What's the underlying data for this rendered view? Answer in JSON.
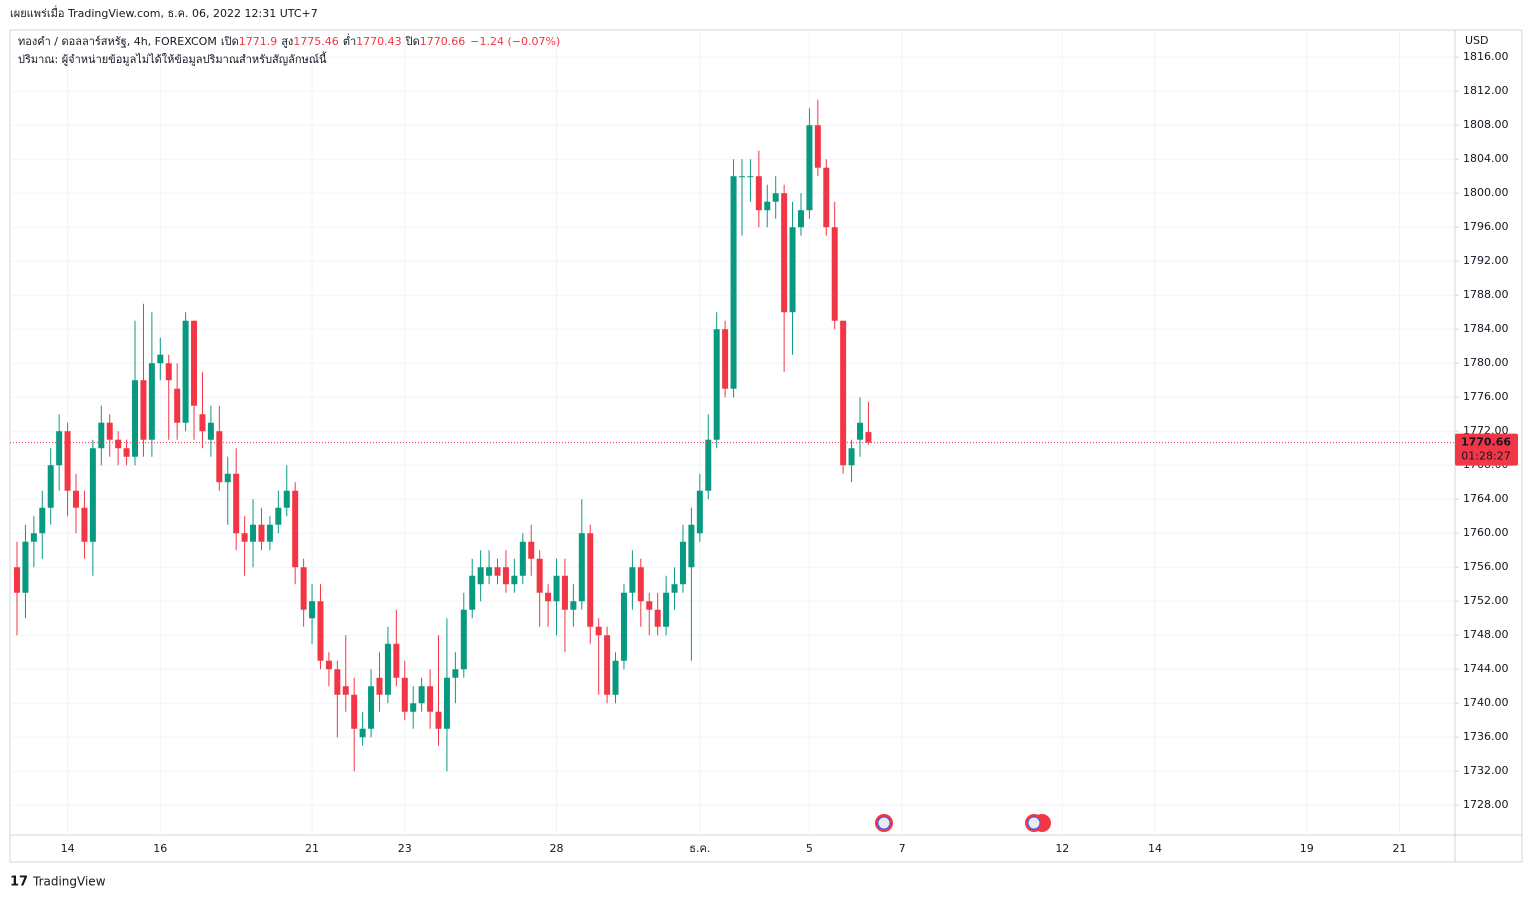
{
  "published": "เผยแพร่เมื่อ TradingView.com, ธ.ค. 06, 2022 12:31 UTC+7",
  "brand": "TradingView",
  "chart_data": {
    "type": "candlestick",
    "symbol": "ทองคำ / ดอลลาร์สหรัฐ, 4h, FOREXCOM",
    "open_label": "เปิด",
    "high_label": "สูง",
    "low_label": "ต่ำ",
    "close_label": "ปิด",
    "change_label": "−1.24 (−0.07%)",
    "volume_note": "ปริมาณ: ผู้จำหน่ายข้อมูลไม่ได้ให้ข้อมูลปริมาณสำหรับสัญลักษณ์นี้",
    "currency": "USD",
    "countdown": "01:28:27",
    "up_color": "#089981",
    "down_color": "#f23645",
    "grid": true,
    "categories": [
      null,
      null,
      null,
      null,
      null,
      null,
      "14",
      null,
      null,
      null,
      null,
      null,
      null,
      null,
      null,
      null,
      null,
      "16",
      null,
      null,
      null,
      null,
      null,
      null,
      null,
      null,
      null,
      null,
      null,
      null,
      null,
      null,
      null,
      null,
      null,
      "21",
      null,
      null,
      null,
      null,
      null,
      null,
      null,
      null,
      null,
      null,
      "23",
      null,
      null,
      null,
      null,
      null,
      null,
      null,
      null,
      null,
      null,
      null,
      null,
      null,
      null,
      null,
      null,
      null,
      "28",
      null,
      null,
      null,
      null,
      null,
      null,
      null,
      null,
      null,
      null,
      null,
      null,
      null,
      null,
      null,
      null,
      "ธ.ค.",
      null,
      null,
      null,
      null,
      null,
      null,
      null,
      null,
      null,
      null,
      null,
      null,
      "5",
      null,
      null,
      null,
      null,
      null,
      null,
      null,
      null,
      null,
      null,
      "7",
      null,
      null,
      null,
      null,
      null,
      null,
      null,
      null,
      null,
      null,
      null,
      null,
      null,
      null,
      null,
      null,
      null,
      null,
      "12",
      null,
      null,
      null,
      null,
      null,
      null,
      null,
      null,
      null,
      null,
      "14",
      null,
      null,
      null,
      null,
      null,
      null,
      null,
      null,
      null,
      null,
      null,
      null,
      null,
      null,
      null,
      null,
      null,
      "19",
      null,
      null,
      null,
      null,
      null,
      null,
      null,
      null,
      null,
      null,
      "21",
      null,
      null,
      null,
      null,
      null,
      null
    ],
    "open": [
      1756,
      1753,
      1759,
      1760,
      1763,
      1768,
      1772,
      1765,
      1763,
      1759,
      1770,
      1773,
      1771,
      1770,
      1769,
      1778,
      1771,
      1780,
      1780,
      1777,
      1773,
      1785,
      1774,
      1771,
      1772,
      1766,
      1767,
      1760,
      1759,
      1761,
      1759,
      1761,
      1763,
      1765,
      1756,
      1750,
      1752,
      1745,
      1744,
      1742,
      1741,
      1736,
      1737,
      1743,
      1741,
      1747,
      1743,
      1739,
      1740,
      1742,
      1739,
      1737,
      1743,
      1744,
      1751,
      1754,
      1755,
      1756,
      1756,
      1754,
      1755,
      1759,
      1757,
      1753,
      1752,
      1755,
      1751,
      1752,
      1760,
      1749,
      1748,
      1741,
      1745,
      1753,
      1756,
      1752,
      1751,
      1749,
      1753,
      1754,
      1756,
      1760,
      1765,
      1771,
      1784,
      1777,
      1802,
      1802,
      1802,
      1798,
      1799,
      1800,
      1786,
      1796,
      1798,
      1808,
      1803,
      1796,
      1785,
      1768,
      1771,
      1771.9,
      null,
      null,
      null,
      null,
      null,
      null,
      null,
      null,
      null,
      null,
      null,
      null,
      null,
      null,
      null,
      null,
      null,
      null,
      null,
      null,
      null,
      null,
      null,
      null,
      null,
      null,
      null,
      null,
      null,
      null,
      null,
      null,
      null,
      null,
      null,
      null,
      null,
      null,
      null,
      null,
      null,
      null,
      null,
      null,
      null,
      null,
      null,
      null,
      null,
      null,
      null,
      null,
      null,
      null,
      null,
      null,
      null,
      null,
      null,
      null,
      null,
      null,
      null,
      null,
      null,
      null,
      null,
      null,
      null
    ],
    "high": [
      1759,
      1761,
      1762,
      1765,
      1770,
      1774,
      1773,
      1767,
      1765,
      1771,
      1775,
      1774,
      1772,
      1771,
      1785,
      1787,
      1786,
      1783,
      1781,
      1780,
      1786,
      1785,
      1779,
      1775,
      1775,
      1769,
      1770,
      1762,
      1764,
      1763,
      1762,
      1765,
      1768,
      1766,
      1757,
      1754,
      1754,
      1746,
      1745,
      1748,
      1743,
      1739,
      1744,
      1746,
      1749,
      1751,
      1745,
      1742,
      1743,
      1744,
      1748,
      1750,
      1746,
      1753,
      1757,
      1758,
      1758,
      1757,
      1758,
      1757,
      1760,
      1761,
      1758,
      1754,
      1757,
      1757,
      1754,
      1764,
      1761,
      1750,
      1749,
      1746,
      1754,
      1758,
      1757,
      1753,
      1753,
      1755,
      1756,
      1761,
      1763,
      1767,
      1774,
      1786,
      1785,
      1804,
      1804,
      1804,
      1805,
      1801,
      1802,
      1801,
      1799,
      1800,
      1810,
      1811,
      1804,
      1799,
      1785,
      1771,
      1776,
      1775.46,
      null,
      null,
      null,
      null,
      null,
      null,
      null,
      null,
      null,
      null,
      null,
      null,
      null,
      null,
      null,
      null,
      null,
      null,
      null,
      null,
      null,
      null,
      null,
      null,
      null,
      null,
      null,
      null,
      null,
      null,
      null,
      null,
      null,
      null,
      null,
      null,
      null,
      null,
      null,
      null,
      null,
      null,
      null,
      null,
      null,
      null,
      null,
      null,
      null,
      null,
      null,
      null,
      null,
      null,
      null,
      null,
      null,
      null,
      null,
      null,
      null,
      null,
      null,
      null,
      null,
      null,
      null,
      null,
      null
    ],
    "low": [
      1748,
      1750,
      1756,
      1757,
      1761,
      1765,
      1762,
      1760,
      1757,
      1755,
      1768,
      1769,
      1768,
      1768,
      1768,
      1769,
      1769,
      1778,
      1771,
      1771,
      1772,
      1771,
      1770,
      1769,
      1765,
      1761,
      1758,
      1755,
      1756,
      1758,
      1758,
      1760,
      1762,
      1754,
      1749,
      1747,
      1744,
      1742,
      1736,
      1739,
      1732,
      1735,
      1736,
      1739,
      1740,
      1742,
      1738,
      1737,
      1739,
      1737,
      1735,
      1732,
      1740,
      1743,
      1750,
      1752,
      1754,
      1754,
      1753,
      1753,
      1754,
      1755,
      1749,
      1749,
      1748,
      1746,
      1749,
      1751,
      1747,
      1741,
      1740,
      1740,
      1744,
      1751,
      1749,
      1748,
      1748,
      1748,
      1751,
      1753,
      1745,
      1759,
      1764,
      1770,
      1776,
      1776,
      1795,
      1799,
      1796,
      1796,
      1797,
      1779,
      1781,
      1795,
      1797,
      1802,
      1795,
      1784,
      1767,
      1766,
      1769,
      1770.43,
      null,
      null,
      null,
      null,
      null,
      null,
      null,
      null,
      null,
      null,
      null,
      null,
      null,
      null,
      null,
      null,
      null,
      null,
      null,
      null,
      null,
      null,
      null,
      null,
      null,
      null,
      null,
      null,
      null,
      null,
      null,
      null,
      null,
      null,
      null,
      null,
      null,
      null,
      null,
      null,
      null,
      null,
      null,
      null,
      null,
      null,
      null,
      null,
      null,
      null,
      null,
      null,
      null,
      null,
      null,
      null,
      null,
      null,
      null,
      null,
      null,
      null,
      null,
      null,
      null,
      null,
      null,
      null,
      null
    ],
    "close": [
      1753,
      1759,
      1760,
      1763,
      1768,
      1772,
      1765,
      1763,
      1759,
      1770,
      1773,
      1771,
      1770,
      1769,
      1778,
      1771,
      1780,
      1781,
      1778,
      1773,
      1785,
      1775,
      1772,
      1773,
      1766,
      1767,
      1760,
      1759,
      1761,
      1759,
      1761,
      1763,
      1765,
      1756,
      1751,
      1752,
      1745,
      1744,
      1741,
      1741,
      1737,
      1737,
      1742,
      1741,
      1747,
      1743,
      1739,
      1740,
      1742,
      1739,
      1737,
      1743,
      1744,
      1751,
      1755,
      1756,
      1756,
      1755,
      1754,
      1755,
      1759,
      1757,
      1753,
      1752,
      1755,
      1751,
      1752,
      1760,
      1749,
      1748,
      1741,
      1745,
      1753,
      1756,
      1752,
      1751,
      1749,
      1753,
      1754,
      1759,
      1761,
      1765,
      1771,
      1784,
      1777,
      1802,
      1802,
      1802,
      1798,
      1799,
      1800,
      1786,
      1796,
      1798,
      1808,
      1803,
      1796,
      1785,
      1768,
      1770,
      1773,
      1770.66,
      null,
      null,
      null,
      null,
      null,
      null,
      null,
      null,
      null,
      null,
      null,
      null,
      null,
      null,
      null,
      null,
      null,
      null,
      null,
      null,
      null,
      null,
      null,
      null,
      null,
      null,
      null,
      null,
      null,
      null,
      null,
      null,
      null,
      null,
      null,
      null,
      null,
      null,
      null,
      null,
      null,
      null,
      null,
      null,
      null,
      null,
      null,
      null,
      null,
      null,
      null,
      null,
      null,
      null,
      null,
      null,
      null,
      null,
      null,
      null,
      null,
      null,
      null,
      null,
      null,
      null,
      null,
      null,
      null
    ],
    "ylim": [
      1724.5,
      1819.2
    ],
    "yticks": [
      {
        "value": 1728,
        "label": "1728.00"
      },
      {
        "value": 1732,
        "label": "1732.00"
      },
      {
        "value": 1736,
        "label": "1736.00"
      },
      {
        "value": 1740,
        "label": "1740.00"
      },
      {
        "value": 1744,
        "label": "1744.00"
      },
      {
        "value": 1748,
        "label": "1748.00"
      },
      {
        "value": 1752,
        "label": "1752.00"
      },
      {
        "value": 1756,
        "label": "1756.00"
      },
      {
        "value": 1760,
        "label": "1760.00"
      },
      {
        "value": 1764,
        "label": "1764.00"
      },
      {
        "value": 1768,
        "label": "1768.00"
      },
      {
        "value": 1772,
        "label": "1772.00"
      },
      {
        "value": 1776,
        "label": "1776.00"
      },
      {
        "value": 1780,
        "label": "1780.00"
      },
      {
        "value": 1784,
        "label": "1784.00"
      },
      {
        "value": 1788,
        "label": "1788.00"
      },
      {
        "value": 1792,
        "label": "1792.00"
      },
      {
        "value": 1796,
        "label": "1796.00"
      },
      {
        "value": 1800,
        "label": "1800.00"
      },
      {
        "value": 1804,
        "label": "1804.00"
      },
      {
        "value": 1808,
        "label": "1808.00"
      },
      {
        "value": 1812,
        "label": "1812.00"
      },
      {
        "value": 1816,
        "label": "1816.00"
      }
    ]
  }
}
